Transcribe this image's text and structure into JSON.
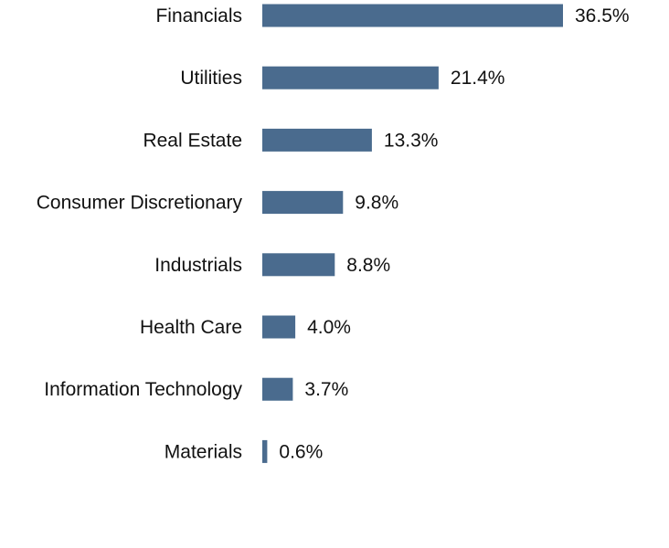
{
  "chart_data": {
    "type": "bar",
    "orientation": "horizontal",
    "categories": [
      "Financials",
      "Utilities",
      "Real Estate",
      "Consumer Discretionary",
      "Industrials",
      "Health Care",
      "Information Technology",
      "Materials"
    ],
    "values": [
      36.5,
      21.4,
      13.3,
      9.8,
      8.8,
      4.0,
      3.7,
      0.6
    ],
    "value_labels": [
      "36.5%",
      "21.4%",
      "13.3%",
      "9.8%",
      "8.8%",
      "4.0%",
      "3.7%",
      "0.6%"
    ],
    "xlim": [
      0,
      36.5
    ],
    "grid": false,
    "legend": "none",
    "bar_color": "#4a6b8e",
    "text_color": "#111111"
  }
}
